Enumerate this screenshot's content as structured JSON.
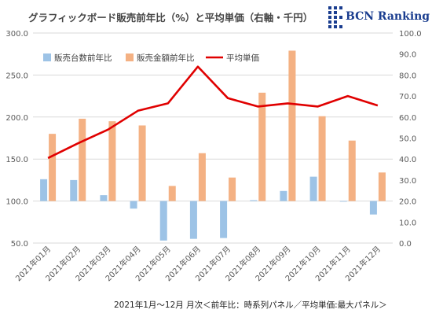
{
  "chart_data": {
    "type": "bar+line",
    "title": "グラフィックボード販売前年比（%）と平均単価（右軸・千円）",
    "footnote": "2021年1月～12月 月次＜前年比：時系列パネル／平均単価:最大パネル＞",
    "logo_text": "BCN Ranking",
    "categories": [
      "2021年01月",
      "2021年02月",
      "2021年03月",
      "2021年04月",
      "2021年05月",
      "2021年06月",
      "2021年07月",
      "2021年08月",
      "2021年09月",
      "2021年10月",
      "2021年11月",
      "2021年12月"
    ],
    "left_axis": {
      "min": 50,
      "max": 300,
      "ticks": [
        "50.0",
        "100.0",
        "150.0",
        "200.0",
        "250.0",
        "300.0"
      ]
    },
    "right_axis": {
      "min": 0,
      "max": 100,
      "ticks": [
        "0.0",
        "10.0",
        "20.0",
        "30.0",
        "40.0",
        "50.0",
        "60.0",
        "70.0",
        "80.0",
        "90.0",
        "100.0"
      ]
    },
    "series": [
      {
        "name": "販売台数前年比",
        "kind": "bar",
        "axis": "left",
        "color": "#9dc3e6",
        "values": [
          126,
          125,
          107,
          91,
          53,
          55,
          56,
          101,
          112,
          129,
          100,
          84
        ]
      },
      {
        "name": "販売金額前年比",
        "kind": "bar",
        "axis": "left",
        "color": "#f4b183",
        "values": [
          180,
          198,
          195,
          190,
          118,
          157,
          128,
          229,
          279,
          201,
          172,
          134
        ]
      },
      {
        "name": "平均単価",
        "kind": "line",
        "axis": "right",
        "color": "#e00000",
        "values": [
          40.5,
          47.5,
          54.0,
          63.0,
          66.5,
          84.0,
          69.0,
          65.0,
          66.5,
          65.0,
          70.0,
          65.5
        ]
      }
    ],
    "grid": true,
    "legend_position": "top-left"
  }
}
